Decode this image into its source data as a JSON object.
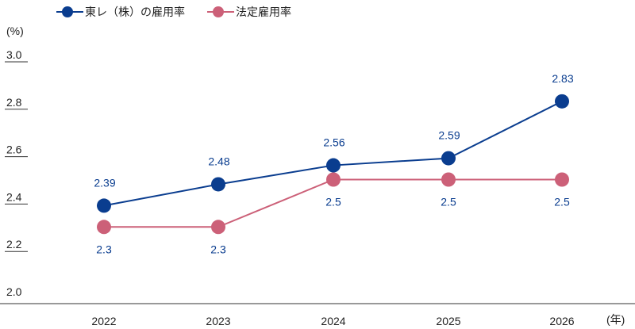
{
  "chart_data": {
    "type": "line",
    "categories": [
      "2022",
      "2023",
      "2024",
      "2025",
      "2026"
    ],
    "xlabel": "(年)",
    "ylabel": "(%)",
    "ylim": [
      2.0,
      3.0
    ],
    "yticks": [
      "2.0",
      "2.2",
      "2.4",
      "2.6",
      "2.8",
      "3.0"
    ],
    "legend_position": "top-left",
    "series": [
      {
        "name": "東レ（株）の雇用率",
        "values": [
          2.39,
          2.48,
          2.56,
          2.59,
          2.83
        ],
        "labels": [
          "2.39",
          "2.48",
          "2.56",
          "2.59",
          "2.83"
        ],
        "color": "#0a3d8f"
      },
      {
        "name": "法定雇用率",
        "values": [
          2.3,
          2.3,
          2.5,
          2.5,
          2.5
        ],
        "labels": [
          "2.3",
          "2.3",
          "2.5",
          "2.5",
          "2.5"
        ],
        "color": "#cc6078"
      }
    ]
  }
}
